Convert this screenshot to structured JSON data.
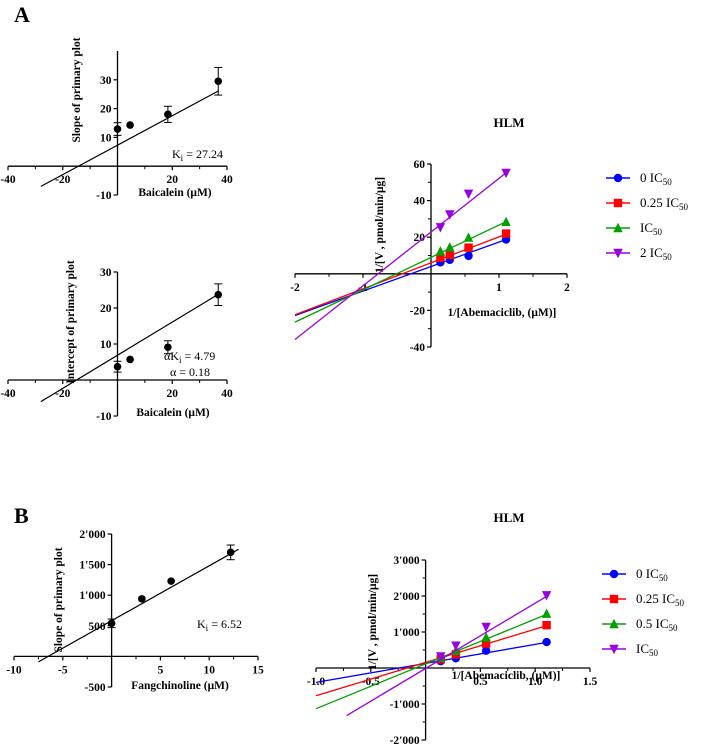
{
  "panels": {
    "A": {
      "letter": "A",
      "primary_slope": {
        "type": "scatter",
        "ylabel": "Slope of primary plot",
        "xlabel": "Baicalein (μM)",
        "xlim": [
          -40,
          40
        ],
        "ylim": [
          -10,
          40
        ],
        "xticks": [
          -40,
          -20,
          20,
          40
        ],
        "yticks": [
          -10,
          10,
          20,
          30
        ],
        "x": [
          0,
          4.6,
          18.4,
          36.8
        ],
        "y": [
          12.9,
          14.3,
          18.0,
          29.5
        ],
        "err": [
          2.2,
          0,
          2.8,
          4.8
        ],
        "fit": {
          "x": [
            -28,
            37
          ],
          "y": [
            -7.0,
            26.2
          ]
        },
        "annotation": {
          "main": "K",
          "sub": "i",
          "rest": " = 27.24"
        }
      },
      "primary_intercept": {
        "type": "scatter",
        "ylabel": "Intercept of primary plot",
        "xlabel": "Baicalein (μM)",
        "xlim": [
          -40,
          40
        ],
        "ylim": [
          -10,
          30
        ],
        "xticks": [
          -40,
          -20,
          20,
          40
        ],
        "yticks": [
          -10,
          10,
          20,
          30
        ],
        "x": [
          0,
          4.6,
          18.4,
          36.8
        ],
        "y": [
          3.7,
          5.7,
          9.1,
          23.7
        ],
        "err": [
          1.5,
          0,
          1.8,
          3.0
        ],
        "fit": {
          "x": [
            -28,
            37
          ],
          "y": [
            -6.0,
            23.9
          ]
        },
        "annotation1": {
          "main": "αK",
          "sub": "i",
          "rest": " = 4.79"
        },
        "annotation2": "α = 0.18"
      },
      "lineweaver_burk": {
        "type": "line",
        "title": "HLM",
        "ylabel": "1/[V , pmol/min/μg]",
        "xlabel": "1/[Abemaciclib, (μM)]",
        "xlim": [
          -2,
          2
        ],
        "ylim": [
          -40,
          60
        ],
        "xticks": [
          -2,
          -1,
          1,
          2
        ],
        "yticks": [
          -40,
          -20,
          20,
          40,
          60
        ],
        "x": [
          0.138,
          0.276,
          0.552,
          1.104
        ],
        "series": [
          {
            "name": "0 IC",
            "sub": "50",
            "color": "#0000ff",
            "marker": "circle",
            "values": [
              6.2,
              7.6,
              9.8,
              18.7
            ],
            "fit": [
              -2,
              1.1
            ],
            "fity": [
              -22.8,
              18.7
            ]
          },
          {
            "name": "0.25 IC",
            "sub": "50",
            "color": "#ff0000",
            "marker": "square",
            "values": [
              8.8,
              10.3,
              14.3,
              22.0
            ],
            "fit": [
              -2,
              1.1
            ],
            "fity": [
              -22.4,
              21.6
            ]
          },
          {
            "name": "IC",
            "sub": "50",
            "color": "#00a000",
            "marker": "triangle",
            "values": [
              12.3,
              14.5,
              19.8,
              28.4
            ],
            "fit": [
              -2,
              1.1
            ],
            "fity": [
              -26.4,
              28.4
            ]
          },
          {
            "name": "2 IC",
            "sub": "50",
            "color": "#9900dd",
            "marker": "triangle-down",
            "values": [
              25.4,
              32.4,
              43.7,
              55.1
            ],
            "fit": [
              -2,
              1.1
            ],
            "fity": [
              -35.9,
              55.1
            ]
          }
        ]
      }
    },
    "B": {
      "letter": "B",
      "primary_slope": {
        "type": "scatter",
        "ylabel": "Slope of primary plot",
        "xlabel": "Fangchinoline (μM)",
        "xlim": [
          -10,
          15
        ],
        "ylim": [
          -500,
          2000
        ],
        "xticks": [
          -10,
          -5,
          5,
          10,
          15
        ],
        "yticks": [
          "-500",
          "500",
          "1'000",
          "1'500",
          "2'000"
        ],
        "ytickvals": [
          -500,
          500,
          1000,
          1500,
          2000
        ],
        "x": [
          0,
          3.1,
          6.1,
          12.2
        ],
        "y": [
          540,
          940,
          1230,
          1700
        ],
        "err": [
          70,
          0,
          0,
          120
        ],
        "fit": {
          "x": [
            -7.5,
            13
          ],
          "y": [
            -90,
            1750
          ]
        },
        "annotation": {
          "main": "K",
          "sub": "i",
          "rest": " = 6.52"
        }
      },
      "lineweaver_burk": {
        "type": "line",
        "title": "HLM",
        "ylabel": "1/[V , pmol/min/μg]",
        "xlabel": "1/[Abemaciclib, (μM)]",
        "xlim": [
          -1.0,
          1.5
        ],
        "ylim": [
          -2000,
          3000
        ],
        "xticks": [
          "-1.0",
          "-0.5",
          "0.5",
          "1.0",
          "1.5"
        ],
        "xtickvals": [
          -1.0,
          -0.5,
          0.5,
          1.0,
          1.5
        ],
        "yticks": [
          "-2'000",
          "-1'000",
          "1'000",
          "2'000",
          "3'000"
        ],
        "ytickvals": [
          -2000,
          -1000,
          1000,
          2000,
          3000
        ],
        "x": [
          0.138,
          0.276,
          0.552,
          1.104
        ],
        "series": [
          {
            "name": "0 IC",
            "sub": "50",
            "color": "#0000ff",
            "marker": "circle",
            "values": [
              190,
              270,
              480,
              720
            ],
            "fit": [
              -1.0,
              1.12
            ],
            "fity": [
              -400,
              720
            ]
          },
          {
            "name": "0.25 IC",
            "sub": "50",
            "color": "#ff0000",
            "marker": "square",
            "values": [
              240,
              380,
              680,
              1190
            ],
            "fit": [
              -1.0,
              1.12
            ],
            "fity": [
              -770,
              1190
            ]
          },
          {
            "name": "0.5 IC",
            "sub": "50",
            "color": "#00a000",
            "marker": "triangle",
            "values": [
              280,
              480,
              850,
              1510
            ],
            "fit": [
              -1.0,
              1.12
            ],
            "fity": [
              -1130,
              1510
            ]
          },
          {
            "name": "IC",
            "sub": "50",
            "color": "#9900dd",
            "marker": "triangle-down",
            "values": [
              320,
              620,
              1140,
              2020
            ],
            "fit": [
              -0.72,
              1.12
            ],
            "fity": [
              -1320,
              2020
            ]
          }
        ]
      }
    }
  }
}
